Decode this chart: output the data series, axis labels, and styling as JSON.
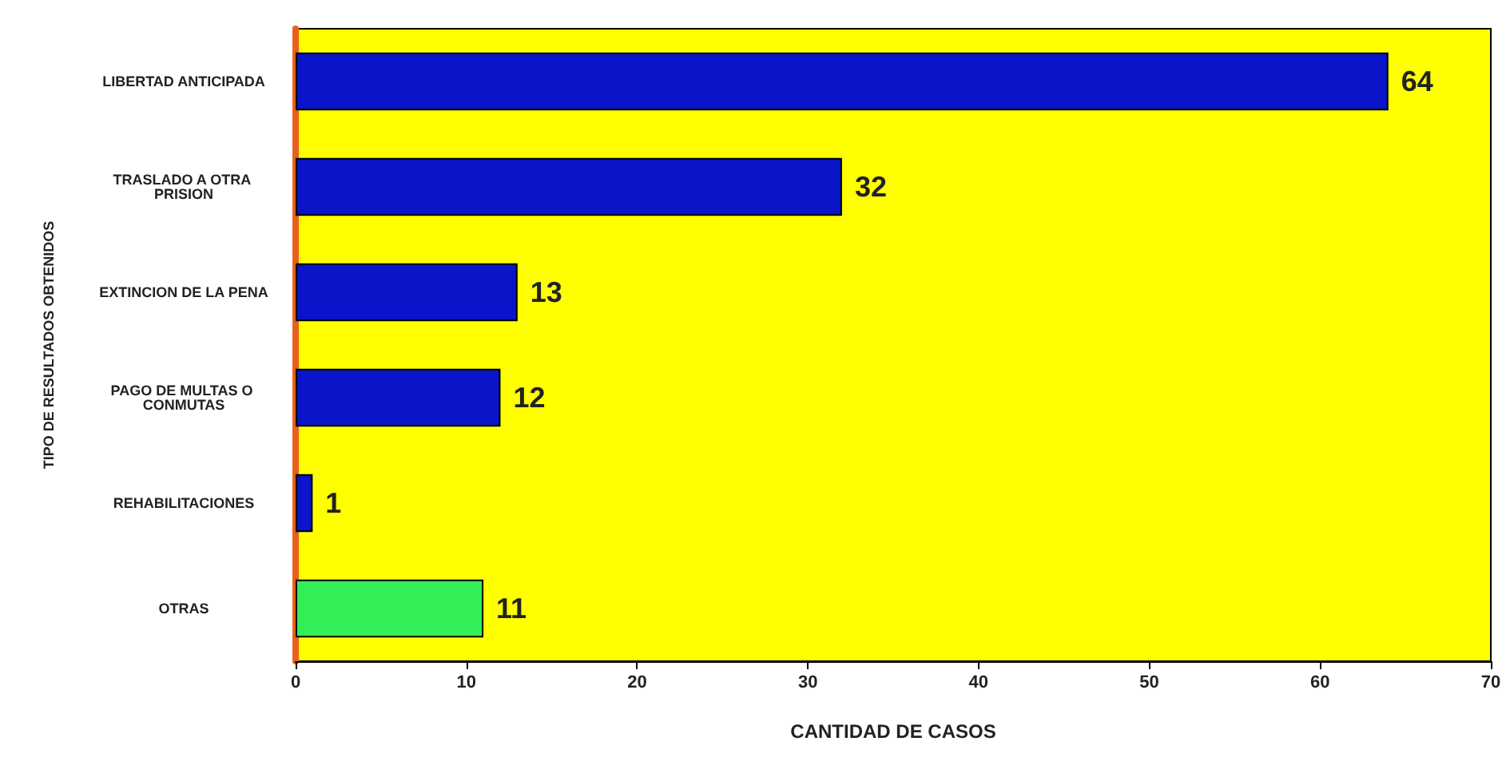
{
  "chart_data": {
    "type": "bar",
    "orientation": "horizontal",
    "categories": [
      "LIBERTAD ANTICIPADA",
      "TRASLADO A OTRA PRISION",
      "EXTINCION DE LA PENA",
      "PAGO DE MULTAS O CONMUTAS",
      "REHABILITACIONES",
      "OTRAS"
    ],
    "values": [
      64,
      32,
      13,
      12,
      1,
      11
    ],
    "colors": [
      "#0a14c8",
      "#0a14c8",
      "#0a14c8",
      "#0a14c8",
      "#0a14c8",
      "#33ee55"
    ],
    "xlim": [
      0,
      70
    ],
    "xticks": [
      0,
      10,
      20,
      30,
      40,
      50,
      60,
      70
    ],
    "xlabel": "CANTIDAD DE CASOS",
    "ylabel": "TIPO DE RESULTADOS OBTENIDOS",
    "data_labels": true,
    "grid": false
  }
}
